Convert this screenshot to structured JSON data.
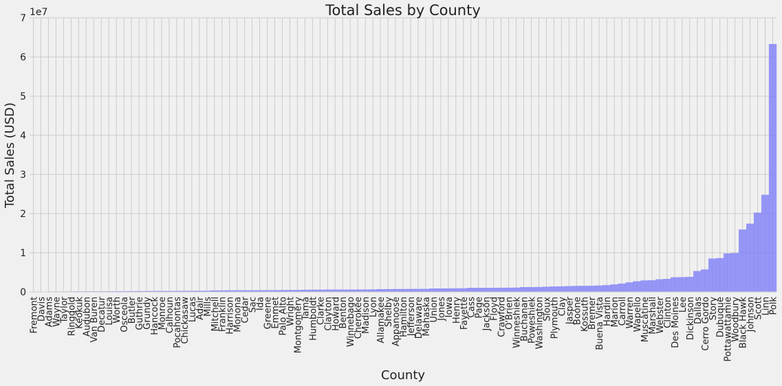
{
  "chart_data": {
    "type": "bar",
    "title": "Total Sales by County",
    "xlabel": "County",
    "ylabel": "Total Sales (USD)",
    "y_offset_label": "1e7",
    "y_scale": 10000000,
    "ylim": [
      0,
      70000000
    ],
    "yticks": [
      0,
      1,
      2,
      3,
      4,
      5,
      6,
      7
    ],
    "grid": true,
    "bar_color": "#8080f8",
    "categories": [
      "Fremont",
      "Davis",
      "Adams",
      "Wayne",
      "Taylor",
      "Ringgold",
      "Keokuk",
      "Audubon",
      "Van Buren",
      "Decatur",
      "Louisa",
      "Worth",
      "Osceola",
      "Butler",
      "Guthrie",
      "Grundy",
      "Hancock",
      "Monroe",
      "Calhoun",
      "Pocahontas",
      "Chickasaw",
      "Lucas",
      "Adair",
      "Mills",
      "Mitchell",
      "Franklin",
      "Harrison",
      "Monona",
      "Cedar",
      "Sac",
      "Ida",
      "Greene",
      "Emmet",
      "Palo Alto",
      "Wright",
      "Montgomery",
      "Tama",
      "Humboldt",
      "Clarke",
      "Clayton",
      "Howard",
      "Benton",
      "Winnebago",
      "Cherokee",
      "Madison",
      "Lyon",
      "Allamakee",
      "Shelby",
      "Appanoose",
      "Hamilton",
      "Jefferson",
      "Delaware",
      "Mahaska",
      "Union",
      "Jones",
      "Iowa",
      "Henry",
      "Fayette",
      "Cass",
      "Page",
      "Jackson",
      "Floyd",
      "Crawford",
      "O'Brien",
      "Winneshiek",
      "Buchanan",
      "Poweshiek",
      "Washington",
      "Sioux",
      "Plymouth",
      "Clay",
      "Jasper",
      "Boone",
      "Kossuth",
      "Bremer",
      "Buena Vista",
      "Hardin",
      "Marion",
      "Carroll",
      "Warren",
      "Wapello",
      "Muscatine",
      "Marshall",
      "Webster",
      "Clinton",
      "Des Moines",
      "Lee",
      "Dickinson",
      "Dallas",
      "Cerro Gordo",
      "Story",
      "Dubuque",
      "Pottawattamie",
      "Woodbury",
      "Black Hawk",
      "Johnson",
      "Scott",
      "Linn",
      "Polk"
    ],
    "values": [
      40000,
      50000,
      60000,
      70000,
      80000,
      90000,
      100000,
      110000,
      120000,
      130000,
      140000,
      150000,
      160000,
      170000,
      180000,
      190000,
      200000,
      210000,
      220000,
      230000,
      240000,
      250000,
      260000,
      270000,
      350000,
      360000,
      370000,
      380000,
      390000,
      400000,
      410000,
      420000,
      430000,
      440000,
      450000,
      460000,
      520000,
      530000,
      540000,
      550000,
      560000,
      570000,
      580000,
      590000,
      600000,
      610000,
      680000,
      690000,
      700000,
      710000,
      720000,
      730000,
      740000,
      850000,
      860000,
      870000,
      880000,
      890000,
      1000000,
      1010000,
      1020000,
      1030000,
      1040000,
      1050000,
      1060000,
      1200000,
      1210000,
      1220000,
      1300000,
      1350000,
      1400000,
      1450000,
      1500000,
      1520000,
      1550000,
      1600000,
      1700000,
      1900000,
      2100000,
      2400000,
      2700000,
      2900000,
      2950000,
      3200000,
      3300000,
      3700000,
      3750000,
      3800000,
      5300000,
      5700000,
      8500000,
      8600000,
      9800000,
      9900000,
      15900000,
      17400000,
      20200000,
      24800000,
      63300000
    ]
  }
}
